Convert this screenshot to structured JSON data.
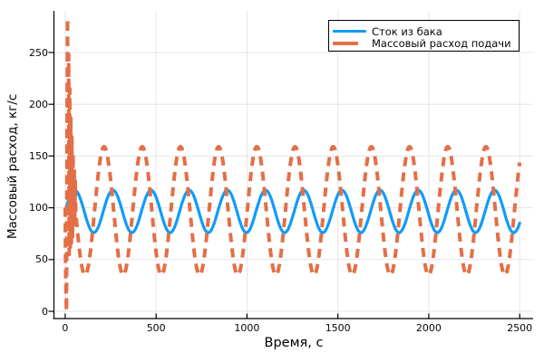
{
  "chart_data": {
    "type": "line",
    "title": "",
    "xlabel": "Время, с",
    "ylabel": "Массовый расход, кг/с",
    "x_ticks": [
      0,
      500,
      1000,
      1500,
      2000,
      2500
    ],
    "y_ticks": [
      0,
      50,
      100,
      150,
      200,
      250
    ],
    "xlim": [
      -62,
      2574
    ],
    "ylim": [
      -7,
      290.2
    ],
    "grid": true,
    "grid_color": "#e5e5e5",
    "axis_color": "#000000",
    "legend_position": "top-right-inside",
    "series": [
      {
        "name": "Сток из бака",
        "color": "#109BFA",
        "line_style": "solid",
        "line_width": 3.2,
        "x_range": [
          0,
          2500
        ],
        "sample_step_s": 2,
        "model": {
          "kind": "cosine",
          "mean": 96.5,
          "amplitude": 20.5,
          "period_s": 210,
          "peak_t": 262
        },
        "description": "Tank outflow: sinusoid ~96.5±20.5 кг/с, period ≈210 с, first peak ≈ t=52 с, lags supply by ≈48 с"
      },
      {
        "name": "Массовый расход подачи",
        "color": "#E36F47",
        "line_style": "dashed",
        "dash_pattern": [
          10,
          7
        ],
        "line_width": 4,
        "x_range": [
          0,
          2500
        ],
        "sample_step_s": 2,
        "model": {
          "kind": "cosine",
          "mean": 97,
          "amplitude": 62,
          "period_s": 210,
          "peak_t": 214,
          "steady_from_t": 58
        },
        "transient_points": {
          "t": [
            0,
            3,
            7,
            10,
            13,
            16,
            19,
            22,
            25,
            28,
            31,
            34,
            37,
            40,
            43,
            46,
            49,
            52,
            55,
            58
          ],
          "v": [
            100,
            30,
            0,
            140,
            283,
            60,
            248,
            55,
            215,
            62,
            188,
            66,
            168,
            72,
            152,
            80,
            140,
            90,
            126,
            94
          ]
        },
        "description": "Supply mass flow: start-up burst oscillating 0–283 кг/с during first ~60 с, then sinusoid ~97±62 кг/с, period ≈210 с"
      }
    ]
  }
}
